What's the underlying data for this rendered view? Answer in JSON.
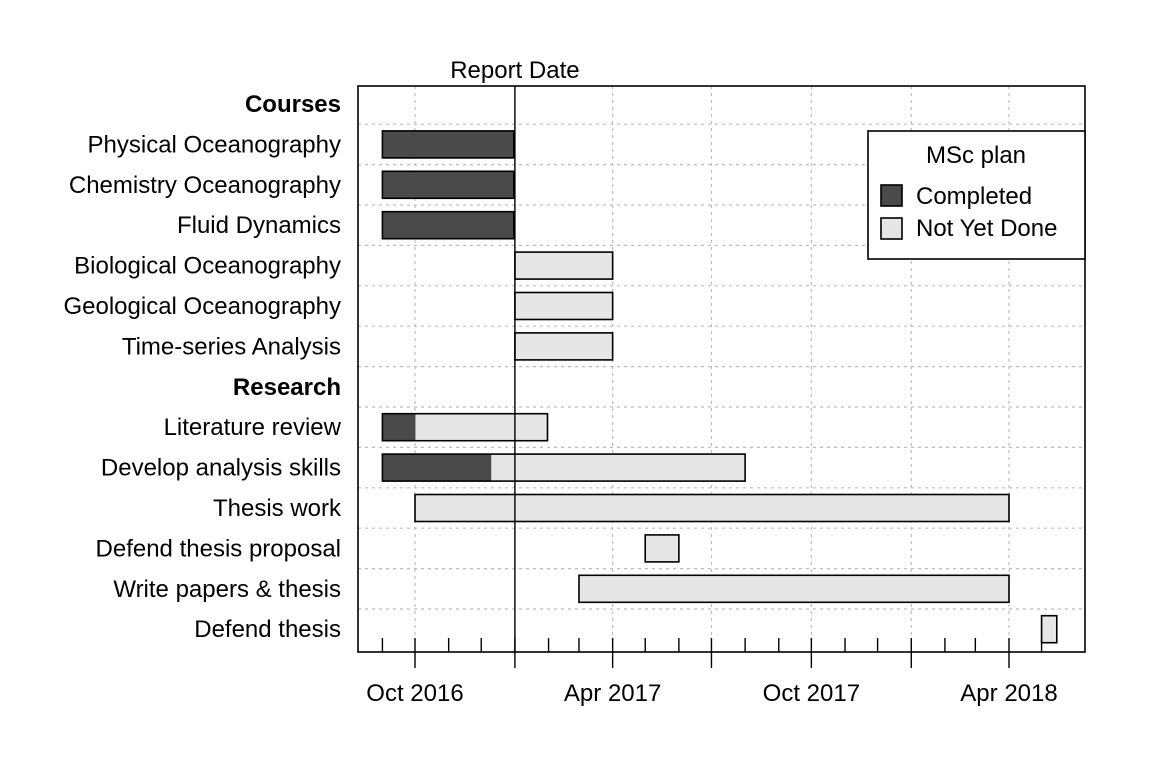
{
  "chart_data": {
    "type": "gantt",
    "x_axis": {
      "range": [
        "2016-08-01",
        "2018-05-10"
      ],
      "tick_labels": [
        "Oct 2016",
        "Apr 2017",
        "Oct 2017",
        "Apr 2018"
      ],
      "tick_dates": [
        "2016-10-01",
        "2017-04-01",
        "2017-10-01",
        "2018-04-01"
      ],
      "quarter_ticks": [
        "2017-01-01",
        "2017-07-01",
        "2018-01-01"
      ]
    },
    "report_date": {
      "label": "Report Date",
      "date": "2017-01-01"
    },
    "legend": {
      "title": "MSc plan",
      "placement": "top-right",
      "items": [
        {
          "label": "Completed",
          "color": "#4a4a4a"
        },
        {
          "label": "Not Yet Done",
          "color": "#e6e6e6"
        }
      ]
    },
    "grid": true,
    "rows": [
      {
        "label": "Courses",
        "heading": true
      },
      {
        "label": "Physical Oceanography",
        "start": "2016-09-01",
        "end": "2016-12-31",
        "done": 1.0
      },
      {
        "label": "Chemistry Oceanography",
        "start": "2016-09-01",
        "end": "2016-12-31",
        "done": 1.0
      },
      {
        "label": "Fluid Dynamics",
        "start": "2016-09-01",
        "end": "2016-12-31",
        "done": 1.0
      },
      {
        "label": "Biological Oceanography",
        "start": "2017-01-01",
        "end": "2017-04-01",
        "done": 0.0
      },
      {
        "label": "Geological Oceanography",
        "start": "2017-01-01",
        "end": "2017-04-01",
        "done": 0.0
      },
      {
        "label": "Time-series Analysis",
        "start": "2017-01-01",
        "end": "2017-04-01",
        "done": 0.0
      },
      {
        "label": "Research",
        "heading": true
      },
      {
        "label": "Literature review",
        "start": "2016-09-01",
        "end": "2017-01-31",
        "done": 0.2
      },
      {
        "label": "Develop analysis skills",
        "start": "2016-09-01",
        "end": "2017-08-01",
        "done": 0.3
      },
      {
        "label": "Thesis work",
        "start": "2016-10-01",
        "end": "2018-04-01",
        "done": 0.0
      },
      {
        "label": "Defend thesis proposal",
        "start": "2017-05-01",
        "end": "2017-06-01",
        "done": 0.0
      },
      {
        "label": "Write papers & thesis",
        "start": "2017-03-01",
        "end": "2018-04-01",
        "done": 0.0
      },
      {
        "label": "Defend thesis",
        "start": "2018-05-01",
        "end": "2018-05-15",
        "done": 0.0
      }
    ]
  }
}
